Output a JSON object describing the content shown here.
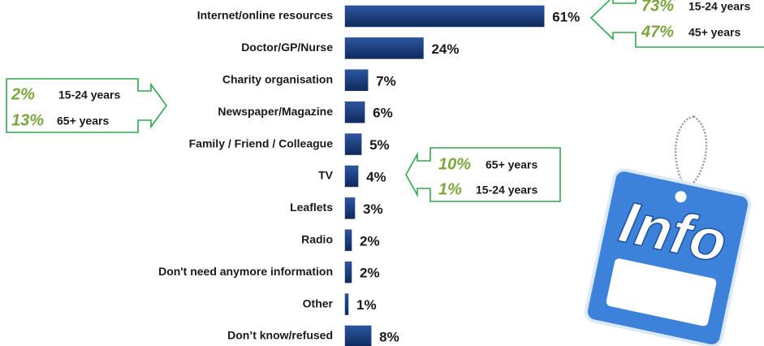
{
  "chart_data": {
    "type": "bar",
    "orientation": "horizontal",
    "categories": [
      "Internet/online resources",
      "Doctor/GP/Nurse",
      "Charity organisation",
      "Newspaper/Magazine",
      "Family / Friend / Colleague",
      "TV",
      "Leaflets",
      "Radio",
      "Don't need anymore information",
      "Other",
      "Don’t know/refused"
    ],
    "values": [
      61,
      24,
      7,
      6,
      5,
      4,
      3,
      2,
      2,
      1,
      8
    ],
    "value_labels": [
      "61%",
      "24%",
      "7%",
      "6%",
      "5%",
      "4%",
      "3%",
      "2%",
      "2%",
      "1%",
      "8%"
    ],
    "color": "#1c3f80"
  },
  "annotations": [
    {
      "lines": [
        {
          "value": "73%",
          "group": "15-24 years"
        },
        {
          "value": "47%",
          "group": "45+ years"
        }
      ]
    },
    {
      "lines": [
        {
          "value": "2%",
          "group": "15-24 years"
        },
        {
          "value": "13%",
          "group": "65+ years"
        }
      ]
    },
    {
      "lines": [
        {
          "value": "10%",
          "group": "65+ years"
        },
        {
          "value": "1%",
          "group": "15-24 years"
        }
      ]
    }
  ],
  "image_label": "Info"
}
